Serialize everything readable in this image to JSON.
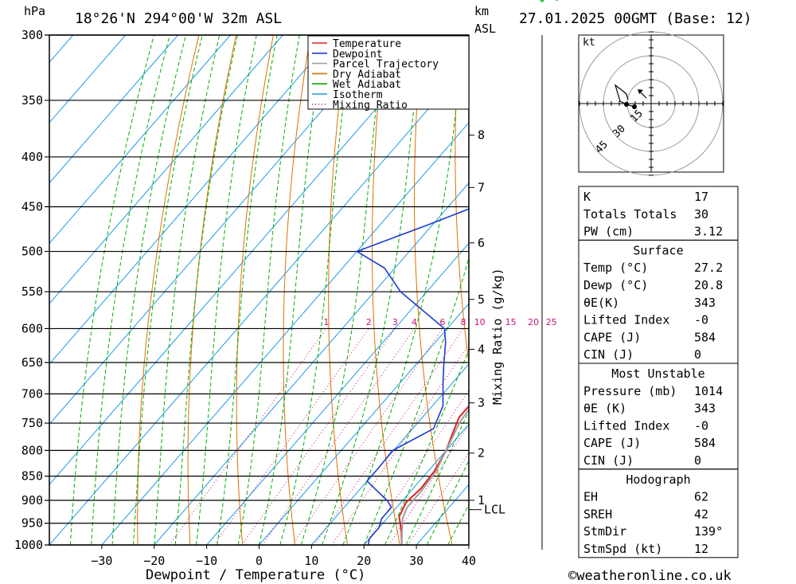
{
  "header": {
    "pressure_unit": "hPa",
    "location": "18°26'N 294°00'W 32m ASL",
    "km_label": "km",
    "asl_label": "ASL",
    "datetime": "27.01.2025 00GMT (Base: 12)"
  },
  "legend": [
    {
      "label": "Temperature",
      "color": "#e02020",
      "style": "solid"
    },
    {
      "label": "Dewpoint",
      "color": "#1e3cd2",
      "style": "solid"
    },
    {
      "label": "Parcel Trajectory",
      "color": "#a0a0a0",
      "style": "solid"
    },
    {
      "label": "Dry Adiabat",
      "color": "#e07000",
      "style": "solid"
    },
    {
      "label": "Wet Adiabat",
      "color": "#00b000",
      "style": "solid"
    },
    {
      "label": "Isotherm",
      "color": "#1e9be6",
      "style": "solid"
    },
    {
      "label": "Mixing Ratio",
      "color": "#c8147a",
      "style": "dotted"
    }
  ],
  "chart_data": {
    "type": "line",
    "title": "",
    "xlabel": "Dewpoint / Temperature (°C)",
    "ylabel": "hPa",
    "y2label": "Mixing Ratio (g/kg)",
    "xlim": [
      -40,
      40
    ],
    "ylim": [
      1000,
      300
    ],
    "y_scale": "log",
    "x_ticks": [
      -30,
      -20,
      -10,
      0,
      10,
      20,
      30,
      40
    ],
    "pressure_levels": [
      300,
      350,
      400,
      450,
      500,
      550,
      600,
      650,
      700,
      750,
      800,
      850,
      900,
      950,
      1000
    ],
    "km_ticks": [
      {
        "label": "8",
        "p": 380
      },
      {
        "label": "7",
        "p": 430
      },
      {
        "label": "6",
        "p": 490
      },
      {
        "label": "5",
        "p": 560
      },
      {
        "label": "4",
        "p": 630
      },
      {
        "label": "3",
        "p": 715
      },
      {
        "label": "2",
        "p": 805
      },
      {
        "label": "1",
        "p": 900
      }
    ],
    "lcl": {
      "label": "LCL",
      "p": 920
    },
    "mixing_ratio_labels": [
      "1",
      "2",
      "3",
      "4",
      "6",
      "8",
      "10",
      "15",
      "20",
      "25"
    ],
    "series": [
      {
        "name": "Temperature",
        "color": "#e02020",
        "points": [
          [
            27.2,
            1000
          ],
          [
            25,
            970
          ],
          [
            22,
            935
          ],
          [
            21,
            905
          ],
          [
            21.5,
            875
          ],
          [
            21.2,
            840
          ],
          [
            20,
            800
          ],
          [
            18.5,
            770
          ],
          [
            17,
            740
          ],
          [
            17,
            700
          ],
          [
            15.5,
            650
          ],
          [
            14,
            600
          ],
          [
            12.5,
            550
          ],
          [
            10.5,
            500
          ],
          [
            6.5,
            450
          ],
          [
            2.5,
            400
          ],
          [
            -5,
            350
          ],
          [
            -14,
            300
          ]
        ]
      },
      {
        "name": "Dewpoint",
        "color": "#1e3cd2",
        "points": [
          [
            20.8,
            1000
          ],
          [
            20,
            985
          ],
          [
            20,
            960
          ],
          [
            19,
            940
          ],
          [
            19,
            915
          ],
          [
            17,
            900
          ],
          [
            10,
            860
          ],
          [
            10,
            830
          ],
          [
            9.8,
            800
          ],
          [
            14,
            760
          ],
          [
            12,
            720
          ],
          [
            8,
            680
          ],
          [
            5,
            650
          ],
          [
            2,
            620
          ],
          [
            -0.5,
            600
          ],
          [
            -15,
            550
          ],
          [
            -22,
            520
          ],
          [
            -30,
            500
          ],
          [
            -21,
            470
          ],
          [
            -15,
            450
          ],
          [
            -17,
            420
          ],
          [
            -19,
            400
          ],
          [
            -15,
            380
          ],
          [
            -12,
            350
          ],
          [
            -17,
            300
          ]
        ]
      },
      {
        "name": "Parcel Trajectory",
        "color": "#a0a0a0",
        "points": [
          [
            27.2,
            1000
          ],
          [
            23,
            940
          ],
          [
            22,
            915
          ],
          [
            22,
            880
          ],
          [
            21.5,
            840
          ],
          [
            20,
            800
          ],
          [
            18,
            750
          ],
          [
            17,
            700
          ],
          [
            15,
            650
          ],
          [
            13,
            600
          ],
          [
            11,
            550
          ],
          [
            8.5,
            500
          ],
          [
            6,
            450
          ],
          [
            3,
            400
          ],
          [
            -2,
            360
          ],
          [
            -8,
            300
          ]
        ]
      }
    ]
  },
  "hodograph": {
    "unit": "kt",
    "ring_labels": [
      "15",
      "30",
      "45"
    ]
  },
  "indices_table": {
    "general": [
      {
        "label": "K",
        "value": "17"
      },
      {
        "label": "Totals Totals",
        "value": "30"
      },
      {
        "label": "PW (cm)",
        "value": "3.12"
      }
    ],
    "surface_title": "Surface",
    "surface": [
      {
        "label": "Temp (°C)",
        "value": "27.2"
      },
      {
        "label": "Dewp (°C)",
        "value": "20.8"
      },
      {
        "label": "θE(K)",
        "value": "343"
      },
      {
        "label": "Lifted Index",
        "value": "-0"
      },
      {
        "label": "CAPE (J)",
        "value": "584"
      },
      {
        "label": "CIN (J)",
        "value": "0"
      }
    ],
    "mu_title": "Most Unstable",
    "most_unstable": [
      {
        "label": "Pressure (mb)",
        "value": "1014"
      },
      {
        "label": "θE (K)",
        "value": "343"
      },
      {
        "label": "Lifted Index",
        "value": "-0"
      },
      {
        "label": "CAPE (J)",
        "value": "584"
      },
      {
        "label": "CIN (J)",
        "value": "0"
      }
    ],
    "hodo_title": "Hodograph",
    "hodograph": [
      {
        "label": "EH",
        "value": "62"
      },
      {
        "label": "SREH",
        "value": "42"
      },
      {
        "label": "StmDir",
        "value": "139°"
      },
      {
        "label": "StmSpd (kt)",
        "value": "12"
      }
    ]
  },
  "copyright": "©weatheronline.co.uk"
}
